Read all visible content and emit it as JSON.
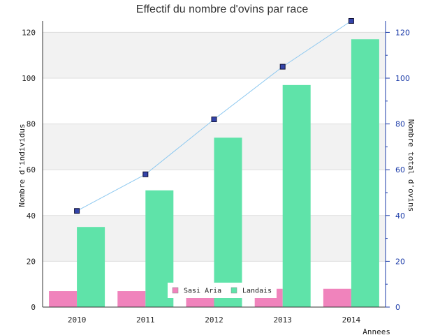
{
  "chart_data": {
    "type": "bar",
    "title": "Effectif du nombre d'ovins par race",
    "xlabel": "Annees",
    "ylabel": "Nombre d'individus",
    "y2label": "Nombre total d'ovins",
    "categories": [
      "2010",
      "2011",
      "2012",
      "2013",
      "2014"
    ],
    "ylim": [
      0,
      125
    ],
    "y2lim": [
      0,
      125
    ],
    "yticks": [
      "0",
      "20",
      "40",
      "60",
      "80",
      "100",
      "120"
    ],
    "y2ticks": [
      "0",
      "20",
      "40",
      "60",
      "80",
      "100",
      "120"
    ],
    "series": [
      {
        "name": "Sasi Aria",
        "type": "bar",
        "color": "#f083bc",
        "values": [
          7,
          7,
          7,
          8,
          8
        ]
      },
      {
        "name": "Landais",
        "type": "bar",
        "color": "#5fe3a9",
        "values": [
          35,
          51,
          74,
          97,
          117
        ]
      },
      {
        "type": "line",
        "axis": "right",
        "color": "#8cc8f0",
        "marker_color": "#3344aa",
        "values": [
          42,
          58,
          82,
          105,
          125
        ]
      }
    ],
    "legend": "bottom-center",
    "grid": true
  }
}
